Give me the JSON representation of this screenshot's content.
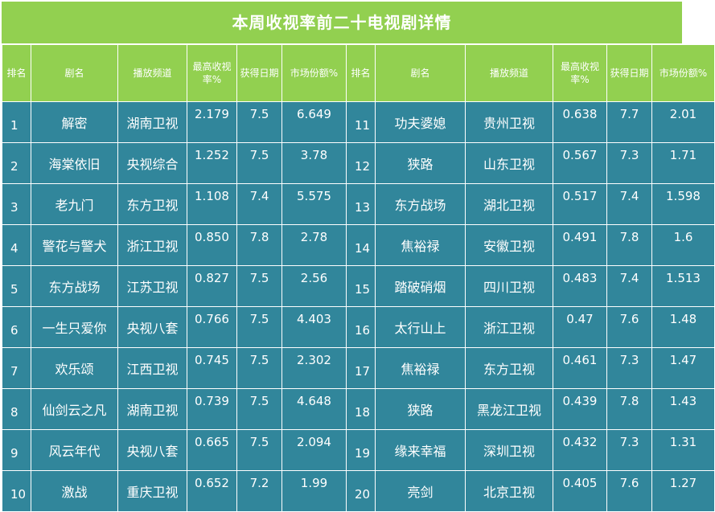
{
  "title": "本周收视率前二十电视剧详情",
  "headers": {
    "rank": "排名",
    "name": "剧名",
    "channel": "播放频道",
    "rating": "最高收视率%",
    "score": "获得日期",
    "share": "市场份额%"
  },
  "rows": [
    {
      "l": {
        "rank": "1",
        "name": "解密",
        "channel": "湖南卫视",
        "rating": "2.179",
        "score": "7.5",
        "share": "6.649"
      },
      "r": {
        "rank": "11",
        "name": "功夫婆媳",
        "channel": "贵州卫视",
        "rating": "0.638",
        "score": "7.7",
        "share": "2.01"
      }
    },
    {
      "l": {
        "rank": "2",
        "name": "海棠依旧",
        "channel": "央视综合",
        "rating": "1.252",
        "score": "7.5",
        "share": "3.78"
      },
      "r": {
        "rank": "12",
        "name": "狭路",
        "channel": "山东卫视",
        "rating": "0.567",
        "score": "7.3",
        "share": "1.71"
      }
    },
    {
      "l": {
        "rank": "3",
        "name": "老九门",
        "channel": "东方卫视",
        "rating": "1.108",
        "score": "7.4",
        "share": "5.575"
      },
      "r": {
        "rank": "13",
        "name": "东方战场",
        "channel": "湖北卫视",
        "rating": "0.517",
        "score": "7.4",
        "share": "1.598"
      }
    },
    {
      "l": {
        "rank": "4",
        "name": "警花与警犬",
        "channel": "浙江卫视",
        "rating": "0.850",
        "score": "7.8",
        "share": "2.78"
      },
      "r": {
        "rank": "14",
        "name": "焦裕禄",
        "channel": "安徽卫视",
        "rating": "0.491",
        "score": "7.8",
        "share": "1.6"
      }
    },
    {
      "l": {
        "rank": "5",
        "name": "东方战场",
        "channel": "江苏卫视",
        "rating": "0.827",
        "score": "7.5",
        "share": "2.56"
      },
      "r": {
        "rank": "15",
        "name": "踏破硝烟",
        "channel": "四川卫视",
        "rating": "0.483",
        "score": "7.4",
        "share": "1.513"
      }
    },
    {
      "l": {
        "rank": "6",
        "name": "一生只爱你",
        "channel": "央视八套",
        "rating": "0.766",
        "score": "7.5",
        "share": "4.403"
      },
      "r": {
        "rank": "16",
        "name": "太行山上",
        "channel": "浙江卫视",
        "rating": "0.47",
        "score": "7.6",
        "share": "1.48"
      }
    },
    {
      "l": {
        "rank": "7",
        "name": "欢乐颂",
        "channel": "江西卫视",
        "rating": "0.745",
        "score": "7.5",
        "share": "2.302"
      },
      "r": {
        "rank": "17",
        "name": "焦裕禄",
        "channel": "东方卫视",
        "rating": "0.461",
        "score": "7.3",
        "share": "1.47"
      }
    },
    {
      "l": {
        "rank": "8",
        "name": "仙剑云之凡",
        "channel": "湖南卫视",
        "rating": "0.739",
        "score": "7.5",
        "share": "4.648"
      },
      "r": {
        "rank": "18",
        "name": "狭路",
        "channel": "黑龙江卫视",
        "rating": "0.439",
        "score": "7.8",
        "share": "1.43"
      }
    },
    {
      "l": {
        "rank": "9",
        "name": "风云年代",
        "channel": "央视八套",
        "rating": "0.665",
        "score": "7.5",
        "share": "2.094"
      },
      "r": {
        "rank": "19",
        "name": "缘来幸福",
        "channel": "深圳卫视",
        "rating": "0.432",
        "score": "7.3",
        "share": "1.31"
      }
    },
    {
      "l": {
        "rank": "10",
        "name": "激战",
        "channel": "重庆卫视",
        "rating": "0.652",
        "score": "7.2",
        "share": "1.99"
      },
      "r": {
        "rank": "20",
        "name": "亮剑",
        "channel": "北京卫视",
        "rating": "0.405",
        "score": "7.6",
        "share": "1.27"
      }
    }
  ],
  "colors": {
    "header_bg": "#92d050",
    "body_bg": "#31869b",
    "text": "#ffffff"
  }
}
